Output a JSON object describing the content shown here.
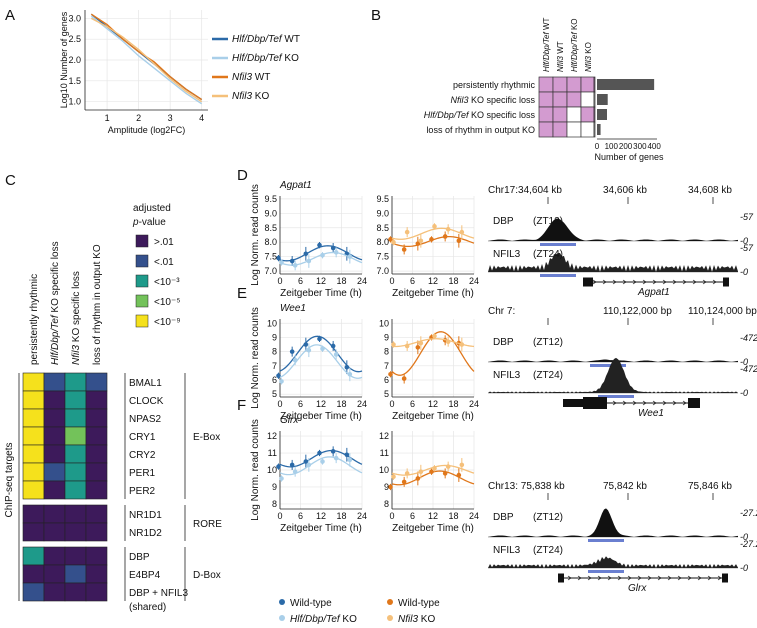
{
  "panels": {
    "a": "A",
    "b": "B",
    "c": "C",
    "d": "D",
    "e": "E",
    "f": "F"
  },
  "colors": {
    "hlf_wt": "#2b6aa8",
    "hlf_ko": "#a9cfe9",
    "nfil3_wt": "#e0771b",
    "nfil3_ko": "#f5c07a",
    "pink": "#d39bd0",
    "bar": "#555555",
    "blue_bar": "#6a7fd0"
  },
  "panel_a": {
    "ylabel": "Log10 Number of genes",
    "xlabel": "Amplitude (log2FC)",
    "yticks": [
      "1.0",
      "1.5",
      "2.0",
      "2.5",
      "3.0"
    ],
    "xticks": [
      "1",
      "2",
      "3",
      "4"
    ],
    "legend": [
      {
        "italic": "Hlf/Dbp/Tef",
        "rest": " WT",
        "color": "#2b6aa8"
      },
      {
        "italic": "Hlf/Dbp/Tef",
        "rest": " KO",
        "color": "#a9cfe9"
      },
      {
        "italic": "Nfil3",
        "rest": " WT",
        "color": "#e0771b"
      },
      {
        "italic": "Nfil3",
        "rest": " KO",
        "color": "#f5c07a"
      }
    ]
  },
  "chart_data": [
    {
      "type": "line",
      "title": "A",
      "xlabel": "Amplitude (log2FC)",
      "ylabel": "Log10 Number of genes",
      "x": [
        0.5,
        1.0,
        1.5,
        2.0,
        2.5,
        3.0,
        3.5,
        4.0
      ],
      "series": [
        {
          "name": "Hlf/Dbp/Tef WT",
          "values": [
            3.1,
            2.8,
            2.5,
            2.2,
            1.9,
            1.6,
            1.3,
            1.05
          ]
        },
        {
          "name": "Hlf/Dbp/Tef KO",
          "values": [
            3.05,
            2.75,
            2.45,
            2.1,
            1.8,
            1.5,
            1.2,
            0.95
          ]
        },
        {
          "name": "Nfil3 WT",
          "values": [
            3.1,
            2.85,
            2.5,
            2.2,
            1.95,
            1.6,
            1.3,
            1.05
          ]
        },
        {
          "name": "Nfil3 KO",
          "values": [
            3.0,
            2.8,
            2.55,
            2.25,
            1.9,
            1.55,
            1.25,
            1.0
          ]
        }
      ],
      "ylim": [
        0.8,
        3.2
      ],
      "xlim": [
        0.3,
        4.2
      ]
    },
    {
      "type": "bar",
      "title": "B",
      "xlabel": "Number of genes",
      "categories": [
        "persistently rhythmic",
        "Nfil3 KO specific loss",
        "Hlf/Dbp/Tef KO specific loss",
        "loss of rhythm in output KO"
      ],
      "values": [
        400,
        75,
        70,
        25
      ],
      "xticks": [
        "0",
        "100",
        "200",
        "300",
        "400"
      ],
      "xlim": [
        0,
        420
      ]
    }
  ],
  "panel_b": {
    "columns": [
      {
        "italic": "Hlf/Dbp/Tef",
        "rest": " WT"
      },
      {
        "italic": "Nfil3",
        "rest": " WT"
      },
      {
        "italic": "Hlf/Dbp/Tef",
        "rest": " KO"
      },
      {
        "italic": "Nfil3",
        "rest": " KO"
      }
    ],
    "rows": [
      {
        "pre": "",
        "italic": "",
        "rest": "persistently rhythmic",
        "fill": [
          1,
          1,
          1,
          1
        ]
      },
      {
        "pre": "",
        "italic": "Nfil3",
        "rest": " KO specific loss",
        "fill": [
          1,
          1,
          1,
          0
        ]
      },
      {
        "pre": "",
        "italic": "Hlf/Dbp/Tef",
        "rest": " KO specific loss",
        "fill": [
          1,
          1,
          0,
          1
        ]
      },
      {
        "pre": "",
        "italic": "",
        "rest": "loss of rhythm in output KO",
        "fill": [
          1,
          1,
          0,
          0
        ]
      }
    ],
    "xlabel": "Number of genes",
    "xticks": [
      "0",
      "100",
      "200",
      "300",
      "400"
    ]
  },
  "panel_c": {
    "columns": [
      {
        "italic": "",
        "rest": "persistently rhythmic"
      },
      {
        "italic": "Hlf/Dbp/Tef",
        "rest": " KO specific loss"
      },
      {
        "italic": "Nfil3",
        "rest": " KO specific loss"
      },
      {
        "italic": "",
        "rest": "loss of rhythm in output KO"
      }
    ],
    "legend_title1": "adjusted",
    "legend_title2": "p-value",
    "legend": [
      {
        "label": ">.01",
        "color": "#3d1a5b"
      },
      {
        "label": "<.01",
        "color": "#34508c"
      },
      {
        "label": "<10⁻³",
        "color": "#1e9a8a"
      },
      {
        "label": "<10⁻⁵",
        "color": "#73c25a"
      },
      {
        "label": "<10⁻⁹",
        "color": "#f5e11c"
      }
    ],
    "ylabel": "ChIP-seq targets",
    "groups": [
      {
        "name": "E-Box",
        "genes": [
          "BMAL1",
          "CLOCK",
          "NPAS2",
          "CRY1",
          "CRY2",
          "PER1",
          "PER2"
        ]
      },
      {
        "name": "RORE",
        "genes": [
          "NR1D1",
          "NR1D2"
        ]
      },
      {
        "name": "D-Box",
        "genes": [
          "DBP",
          "E4BP4",
          "DBP + NFIL3",
          "(shared)"
        ]
      }
    ],
    "matrix": [
      [
        4,
        1,
        2,
        1
      ],
      [
        4,
        0,
        2,
        0
      ],
      [
        4,
        0,
        2,
        0
      ],
      [
        4,
        0,
        3,
        0
      ],
      [
        4,
        0,
        2,
        0
      ],
      [
        4,
        1,
        2,
        0
      ],
      [
        4,
        0,
        2,
        0
      ],
      [
        0,
        0,
        0,
        0
      ],
      [
        0,
        0,
        0,
        0
      ],
      [
        2,
        0,
        0,
        0
      ],
      [
        0,
        0,
        1,
        0
      ],
      [
        1,
        0,
        0,
        0
      ]
    ]
  },
  "genes": [
    {
      "name": "Agpat1",
      "ylabel": "Log Norm. read counts",
      "xlabel": "Zeitgeber Time (h)",
      "yticks": [
        "7.0",
        "7.5",
        "8.0",
        "8.5",
        "9.0",
        "9.5"
      ],
      "ylim": [
        6.9,
        9.6
      ],
      "xticks": [
        "0",
        "6",
        "12",
        "18",
        "24"
      ],
      "wt_blue": [
        7.45,
        7.35,
        7.6,
        7.9,
        7.8,
        7.6
      ],
      "ko_blue": [
        7.3,
        7.2,
        7.35,
        7.55,
        7.65,
        7.5
      ],
      "wt_orange": [
        8.1,
        7.75,
        7.95,
        8.1,
        8.2,
        8.05
      ],
      "ko_orange": [
        8.0,
        8.35,
        8.05,
        8.55,
        8.45,
        8.35
      ],
      "track_coords": [
        "Chr17:34,604 kb",
        "34,606 kb",
        "34,608 kb"
      ],
      "track1": {
        "tf": "DBP",
        "zt": "(ZT12)",
        "max": "57",
        "min": "0"
      },
      "track2": {
        "tf": "NFIL3",
        "zt": "(ZT24)",
        "max": "57",
        "min": "0"
      },
      "gene_label": "Agpat1"
    },
    {
      "name": "Wee1",
      "ylabel": "Log Norm. read counts",
      "xlabel": "Zeitgeber Time (h)",
      "yticks": [
        "5",
        "6",
        "7",
        "8",
        "9",
        "10"
      ],
      "ylim": [
        4.8,
        10.3
      ],
      "xticks": [
        "0",
        "6",
        "12",
        "18",
        "24"
      ],
      "wt_blue": [
        6.3,
        8.0,
        8.5,
        8.9,
        8.4,
        6.9
      ],
      "ko_blue": [
        5.9,
        7.4,
        8.1,
        8.2,
        7.8,
        6.4
      ],
      "wt_orange": [
        6.4,
        6.1,
        8.3,
        9.0,
        8.8,
        8.6
      ],
      "ko_orange": [
        8.5,
        8.4,
        8.6,
        9.1,
        8.7,
        8.5
      ],
      "track_coords": [
        "Chr 7:",
        "110,122,000 bp",
        "110,124,000 bp"
      ],
      "track1": {
        "tf": "DBP",
        "zt": "(ZT12)",
        "max": "472",
        "min": "0"
      },
      "track2": {
        "tf": "NFIL3",
        "zt": "(ZT24)",
        "max": "472",
        "min": "0"
      },
      "gene_label": "Wee1"
    },
    {
      "name": "Glrx",
      "ylabel": "Log Norm. read counts",
      "xlabel": "Zeitgeber Time (h)",
      "yticks": [
        "8",
        "9",
        "10",
        "11",
        "12"
      ],
      "ylim": [
        7.7,
        12.3
      ],
      "xticks": [
        "0",
        "6",
        "12",
        "18",
        "24"
      ],
      "wt_blue": [
        10.2,
        10.3,
        10.5,
        11.0,
        11.1,
        10.9
      ],
      "ko_blue": [
        9.5,
        9.9,
        10.3,
        10.5,
        10.7,
        10.6
      ],
      "wt_orange": [
        9.0,
        9.3,
        9.5,
        9.9,
        9.8,
        9.7
      ],
      "ko_orange": [
        9.6,
        9.8,
        9.9,
        10.1,
        10.2,
        10.3
      ],
      "track_coords": [
        "Chr13: 75,838 kb",
        "75,842 kb",
        "75,846 kb"
      ],
      "track1": {
        "tf": "DBP",
        "zt": "(ZT12)",
        "max": "27.2",
        "min": "0"
      },
      "track2": {
        "tf": "NFIL3",
        "zt": "(ZT24)",
        "max": "27.2",
        "min": "0"
      },
      "gene_label": "Glrx"
    }
  ],
  "bottom_legend": [
    {
      "italic": "",
      "rest": "Wild-type",
      "color": "#2b6aa8"
    },
    {
      "italic": "Hlf/Dbp/Tef",
      "rest": " KO",
      "color": "#a9cfe9"
    },
    {
      "italic": "",
      "rest": "Wild-type",
      "color": "#e0771b"
    },
    {
      "italic": "Nfil3",
      "rest": " KO",
      "color": "#f5c07a"
    }
  ]
}
